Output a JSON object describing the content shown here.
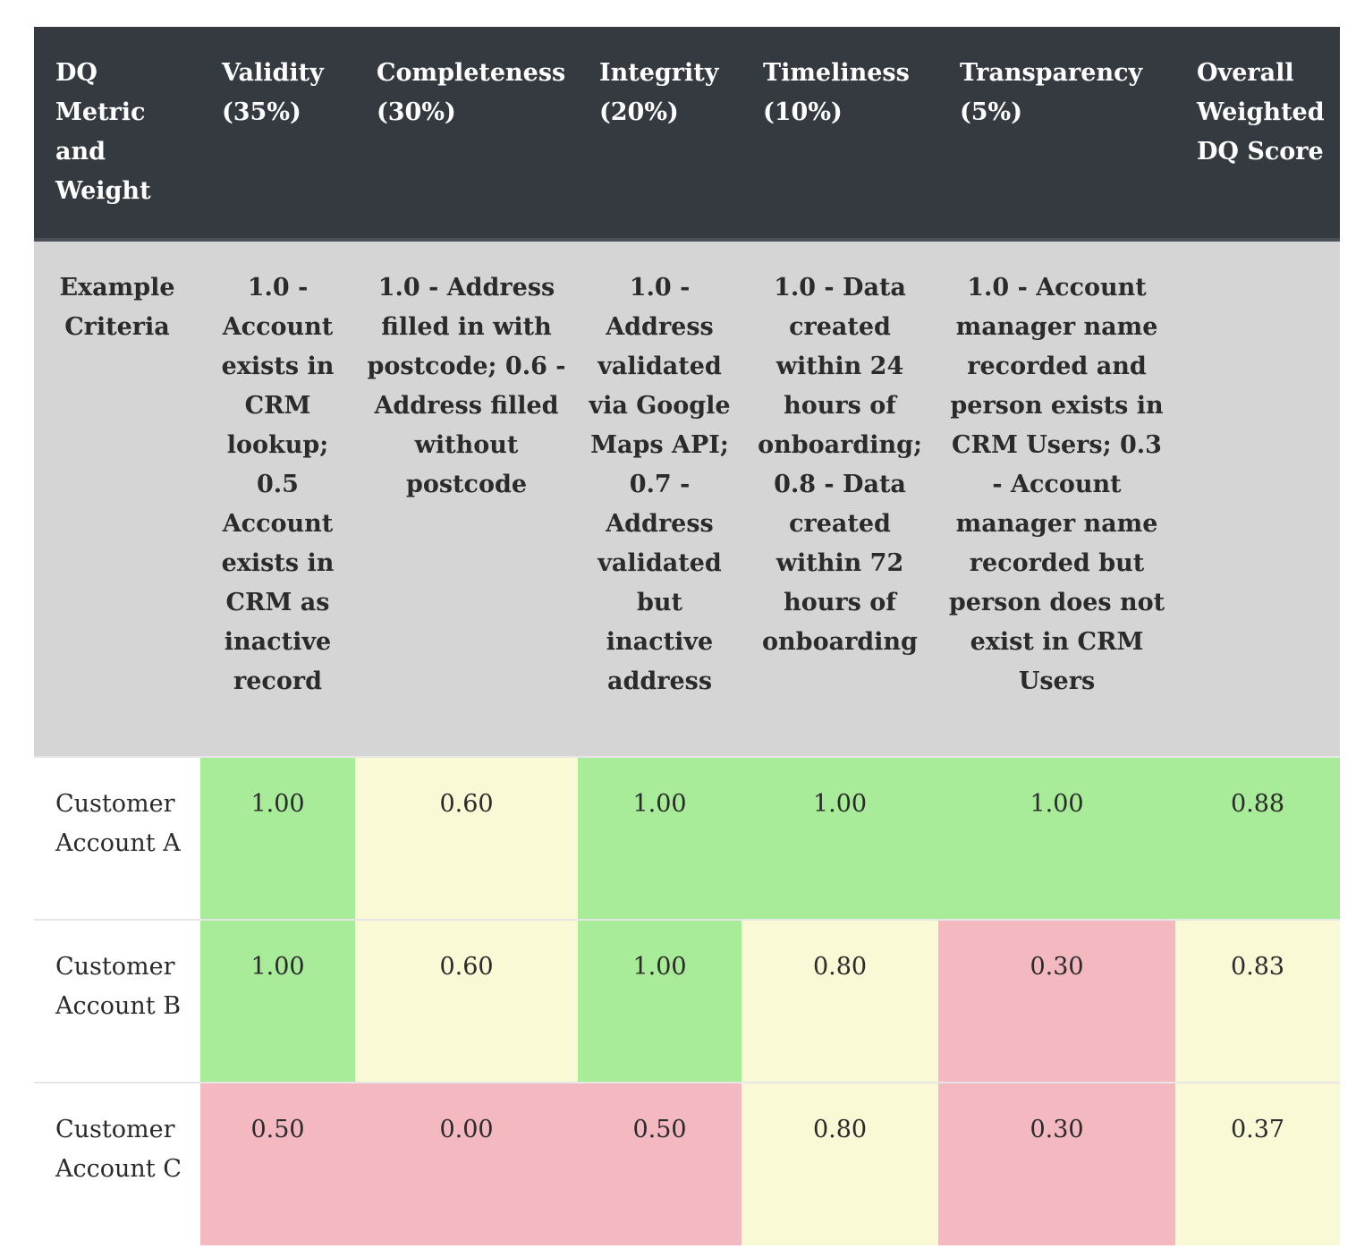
{
  "headers": [
    "DQ Metric and Weight",
    "Validity (35%)",
    "Completeness (30%)",
    "Integrity (20%)",
    "Timeliness (10%)",
    "Transparency (5%)",
    "Overall Weighted DQ Score"
  ],
  "criteria_row": {
    "label": "Example Criteria",
    "cells": [
      "1.0 - Account exists in CRM lookup; 0.5 Account exists in CRM as inactive record",
      "1.0 - Address filled in with postcode; 0.6 - Address filled without postcode",
      "1.0 - Address validated via Google Maps API; 0.7 - Address validated but inactive address",
      "1.0 - Data created within 24 hours of onboarding; 0.8 - Data created within 72 hours of onboarding",
      "1.0 - Account manager name recorded and person exists in CRM Users; 0.3 - Account manager name recorded but person does not exist in CRM Users",
      ""
    ]
  },
  "rows": [
    {
      "label": "Customer Account A",
      "cells": [
        {
          "value": "1.00",
          "status": "green"
        },
        {
          "value": "0.60",
          "status": "yellow"
        },
        {
          "value": "1.00",
          "status": "green"
        },
        {
          "value": "1.00",
          "status": "green"
        },
        {
          "value": "1.00",
          "status": "green"
        },
        {
          "value": "0.88",
          "status": "green"
        }
      ]
    },
    {
      "label": "Customer Account B",
      "cells": [
        {
          "value": "1.00",
          "status": "green"
        },
        {
          "value": "0.60",
          "status": "yellow"
        },
        {
          "value": "1.00",
          "status": "green"
        },
        {
          "value": "0.80",
          "status": "yellow"
        },
        {
          "value": "0.30",
          "status": "red"
        },
        {
          "value": "0.83",
          "status": "yellow"
        }
      ]
    },
    {
      "label": "Customer Account C",
      "cells": [
        {
          "value": "0.50",
          "status": "red"
        },
        {
          "value": "0.00",
          "status": "red"
        },
        {
          "value": "0.50",
          "status": "red"
        },
        {
          "value": "0.80",
          "status": "yellow"
        },
        {
          "value": "0.30",
          "status": "red"
        },
        {
          "value": "0.37",
          "status": "yellow"
        }
      ]
    }
  ],
  "colors": {
    "header_bg": "#343a40",
    "criteria_bg": "#d5d5d5",
    "green": "#a8eb98",
    "yellow": "#f9f9d6",
    "red": "#f4b8c0"
  }
}
